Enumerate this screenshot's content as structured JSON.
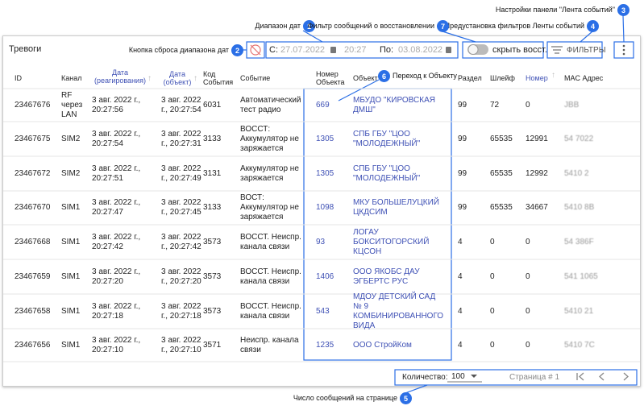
{
  "callouts": [
    {
      "number": "1",
      "label": "Диапазон дат"
    },
    {
      "number": "2",
      "label": "Кнопка сброса диапазона дат"
    },
    {
      "number": "3",
      "label": "Настройки панели \"Лента событий\""
    },
    {
      "number": "4",
      "label": "Предустановка фильтров Ленты событий"
    },
    {
      "number": "5",
      "label": "Число сообщений на странице"
    },
    {
      "number": "6",
      "label": "Переход к Объекту"
    },
    {
      "number": "7",
      "label": "Фильтр сообщений о восстановлении"
    }
  ],
  "panel": {
    "title": "Тревоги",
    "toolbar": {
      "from_label": "С:",
      "from_date": "27.07.2022",
      "from_time": "20:27",
      "to_label": "По:",
      "to_date": "03.08.2022",
      "toggle_label": "скрыть восст.",
      "filters_button": "ФИЛЬТРЫ"
    },
    "table": {
      "headers": [
        "ID",
        "Канал",
        "Дата (реагирования)",
        "Дата (объект)",
        "Код События",
        "Событие",
        "Номер Объекта",
        "Объект",
        "Раздел",
        "Шлейф",
        "Номер",
        "MAC Адрес"
      ],
      "rows": [
        [
          "23467676",
          "RF через LAN",
          "3 авг. 2022 г., 20:27:56",
          "3 авг. 2022 г., 20:27:54",
          "6031",
          "Автоматический тест радио",
          "669",
          "МБУДО \"КИРОВСКАЯ ДМШ\"",
          "99",
          "72",
          "0",
          "JBB"
        ],
        [
          "23467675",
          "SIM2",
          "3 авг. 2022 г., 20:27:54",
          "3 авг. 2022 г., 20:27:31",
          "3133",
          "ВОССТ: Аккумулятор не заряжается",
          "1305",
          "СПБ ГБУ \"ЦОО \"МОЛОДЕЖНЫЙ\"",
          "99",
          "65535",
          "12991",
          "54 7022"
        ],
        [
          "23467672",
          "SIM2",
          "3 авг. 2022 г., 20:27:51",
          "3 авг. 2022 г., 20:27:49",
          "3131",
          "Аккумулятор не заряжается",
          "1305",
          "СПБ ГБУ \"ЦОО \"МОЛОДЕЖНЫЙ\"",
          "99",
          "65535",
          "12992",
          "5410 2"
        ],
        [
          "23467670",
          "SIM1",
          "3 авг. 2022 г., 20:27:47",
          "3 авг. 2022 г., 20:27:45",
          "3133",
          "ВОСТ: Аккумулятор не заряжается",
          "1098",
          "МКУ БОЛЬШЕЛУЦКИЙ ЦКДСИМ",
          "99",
          "65535",
          "34667",
          "5410 8B"
        ],
        [
          "23467668",
          "SIM1",
          "3 авг. 2022 г., 20:27:42",
          "3 авг. 2022 г., 20:27:42",
          "3573",
          "ВОССТ. Неиспр. канала связи",
          "93",
          "ЛОГАУ БОКСИТОГОРСКИЙ КЦСОН",
          "4",
          "0",
          "0",
          "54 386F"
        ],
        [
          "23467659",
          "SIM1",
          "3 авг. 2022 г., 20:27:20",
          "3 авг. 2022 г., 20:27:20",
          "3573",
          "ВОССТ. Неиспр. канала связи",
          "1406",
          "ООО ЯКОБС ДАУ ЭГБЕРТС РУС",
          "4",
          "0",
          "0",
          "541 1065"
        ],
        [
          "23467658",
          "SIM1",
          "3 авг. 2022 г., 20:27:18",
          "3 авг. 2022 г., 20:27:18",
          "3573",
          "ВОССТ. Неиспр. канала связи",
          "543",
          "МДОУ ДЕТСКИЙ САД № 9 КОМБИНИРОВАННОГО ВИДА",
          "4",
          "0",
          "0",
          "5410 21"
        ],
        [
          "23467656",
          "SIM1",
          "3 авг. 2022 г., 20:27:10",
          "3 авг. 2022 г., 20:27:10",
          "3571",
          "Неиспр. канала связи",
          "1235",
          "ООО СтройКом",
          "4",
          "0",
          "0",
          "5410 7C"
        ]
      ]
    },
    "footer": {
      "count_label": "Количество:",
      "count_value": "100",
      "page_label": "Страница # 1"
    }
  }
}
